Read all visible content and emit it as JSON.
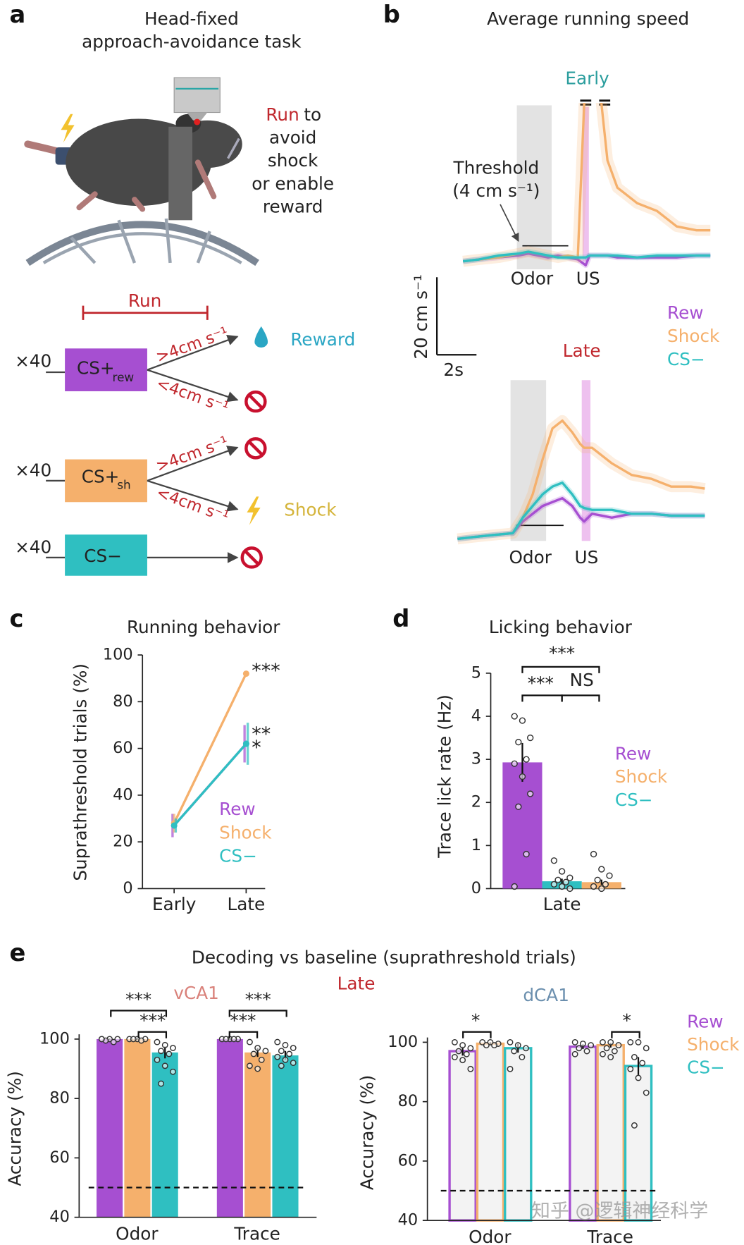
{
  "panel_labels": [
    "a",
    "b",
    "c",
    "d",
    "e"
  ],
  "panel_a": {
    "title": [
      "Head-fixed",
      "approach-avoidance task"
    ],
    "note_highlight": "Run",
    "note": [
      "to",
      "avoid",
      "shock",
      "or enable",
      "reward"
    ],
    "run_label": "Run",
    "rows": [
      {
        "count": "×40",
        "cue": "CS+",
        "cue_sub": "rew",
        "fast": ">4cm s⁻¹",
        "slow": "<4cm s⁻¹",
        "outcome": "Reward"
      },
      {
        "count": "×40",
        "cue": "CS+",
        "cue_sub": "sh",
        "fast": ">4cm s⁻¹",
        "slow": "<4cm s⁻¹",
        "outcome": "Shock"
      },
      {
        "count": "×40",
        "cue": "CS−"
      }
    ]
  },
  "watermark": "知乎 @逻辑神经科学",
  "chart_data": [
    {
      "type": "line",
      "title": "Average running speed",
      "legend": [
        {
          "name": "Rew",
          "color": "#a64fd1"
        },
        {
          "name": "Shock",
          "color": "#f5b06c"
        },
        {
          "name": "CS−",
          "color": "#2fbfc1"
        }
      ],
      "threshold": {
        "value": 4,
        "label": [
          "Threshold",
          "(4 cm s⁻¹)"
        ]
      },
      "scale_bar": {
        "y": {
          "value": 20,
          "label": "20 cm s⁻¹"
        },
        "x": {
          "value": 2,
          "label": "2s"
        }
      },
      "x": [
        -2.8,
        -2,
        -1,
        0,
        0.5,
        1,
        1.5,
        2,
        2.5,
        3,
        3.4,
        3.6,
        4,
        4.5,
        5,
        6,
        7,
        8,
        9,
        9.7
      ],
      "panels": [
        {
          "label": "Early",
          "events": [
            "Odor",
            "US"
          ],
          "series": [
            {
              "values": [
                0,
                0.5,
                1,
                1.5,
                2,
                1.5,
                1,
                1.5,
                1,
                0.5,
                -1,
                1.5,
                1.5,
                1.5,
                1,
                1,
                1,
                1,
                1.5,
                1.5
              ]
            },
            {
              "values": [
                0,
                0.5,
                1,
                2,
                2.5,
                2,
                1.5,
                1,
                1.5,
                1,
                50,
                50,
                50,
                26,
                19,
                15,
                13,
                9,
                8,
                8
              ]
            },
            {
              "values": [
                0,
                0.5,
                1.5,
                2,
                2.5,
                2,
                1.5,
                1,
                1,
                1,
                1,
                1.5,
                1.5,
                1.5,
                1.5,
                1,
                1.5,
                1.5,
                1.5,
                1.5
              ]
            }
          ]
        },
        {
          "label": "Late",
          "events": [
            "Odor",
            "US"
          ],
          "series": [
            {
              "values": [
                0.5,
                1,
                1.5,
                2,
                5,
                7,
                9,
                10,
                11,
                9,
                6,
                5,
                7,
                6.5,
                6,
                7,
                7,
                6.5,
                6.5,
                6.5
              ]
            },
            {
              "values": [
                0.5,
                1,
                1.5,
                2,
                6,
                12,
                21,
                29,
                31,
                28,
                25,
                24,
                24,
                22,
                20,
                17,
                16,
                14,
                14,
                13.5
              ]
            },
            {
              "values": [
                0.5,
                1,
                1.5,
                2,
                6,
                9,
                12,
                14,
                15,
                12,
                9,
                8.5,
                8,
                8,
                8,
                7,
                7,
                6.5,
                6.5,
                6.5
              ]
            }
          ]
        }
      ]
    },
    {
      "type": "line",
      "title": "Running behavior",
      "y_label": "Suprathreshold trials (%)",
      "categories": [
        "Early",
        "Late"
      ],
      "series": [
        {
          "name": "Rew",
          "color": "#a64fd1",
          "values": [
            27,
            62
          ],
          "errors": [
            5,
            8
          ]
        },
        {
          "name": "Shock",
          "color": "#f5b06c",
          "values": [
            28,
            92
          ],
          "errors": [
            4,
            1
          ]
        },
        {
          "name": "CS−",
          "color": "#2fbfc1",
          "values": [
            27,
            62
          ],
          "errors": [
            3,
            9
          ]
        }
      ],
      "annotations": [
        "***",
        "**",
        "*"
      ],
      "ylim": [
        0,
        100
      ],
      "yticks": [
        0,
        20,
        40,
        60,
        80,
        100
      ]
    },
    {
      "type": "bar",
      "title": "Licking behavior",
      "y_label": "Trace lick rate (Hz)",
      "categories": [
        "Late"
      ],
      "series": [
        {
          "name": "Rew",
          "color": "#a64fd1",
          "values": [
            2.93
          ],
          "errors": [
            0.45
          ],
          "points": [
            [
              4.0,
              3.9,
              3.5,
              3.4,
              3.0,
              2.9,
              2.6,
              2.2,
              1.9,
              0.8,
              0.05
            ]
          ]
        },
        {
          "name": "CS−",
          "color": "#2fbfc1",
          "values": [
            0.17
          ],
          "errors": [
            0.06
          ],
          "points": [
            [
              0.65,
              0.4,
              0.25,
              0.2,
              0.15,
              0.1,
              0.05,
              0
            ]
          ]
        },
        {
          "name": "Shock",
          "color": "#f5b06c",
          "values": [
            0.15
          ],
          "errors": [
            0.06
          ],
          "points": [
            [
              0.8,
              0.45,
              0.3,
              0.2,
              0.1,
              0.05,
              0
            ]
          ]
        }
      ],
      "annotations": [
        "***",
        "NS",
        "***"
      ],
      "ylim": [
        0,
        5
      ],
      "yticks": [
        0,
        1,
        2,
        3,
        4,
        5
      ]
    },
    {
      "type": "bar",
      "title": "Decoding vs baseline (suprathreshold trials)",
      "subtitle": "Late",
      "legend": [
        {
          "name": "Rew",
          "color": "#a64fd1"
        },
        {
          "name": "Shock",
          "color": "#f5b06c"
        },
        {
          "name": "CS−",
          "color": "#2fbfc1"
        }
      ],
      "panels": [
        {
          "label": "vCA1",
          "label_color": "#d9817a",
          "bar_style": "filled",
          "y_label": "Accuracy (%)",
          "categories": [
            "Odor",
            "Trace"
          ],
          "ylim": [
            40,
            100
          ],
          "yticks": [
            40,
            60,
            80,
            100
          ],
          "chance": 50,
          "series": [
            {
              "color": "#a64fd1",
              "values": [
                100,
                100
              ],
              "errors": [
                0.2,
                0.2
              ],
              "points": [
                [
                  100,
                  100,
                  100,
                  99.5,
                  99,
                  100
                ],
                [
                  100,
                  100,
                  100,
                  100,
                  100
                ]
              ]
            },
            {
              "color": "#f5b06c",
              "values": [
                100,
                95.5
              ],
              "errors": [
                0.2,
                1.5
              ],
              "points": [
                [
                  100,
                  100,
                  100,
                  100,
                  99.5
                ],
                [
                  99,
                  97,
                  96,
                  95,
                  93,
                  91,
                  90
                ]
              ]
            },
            {
              "color": "#2fbfc1",
              "values": [
                95.5,
                94.5
              ],
              "errors": [
                2,
                1.5
              ],
              "points": [
                [
                  99,
                  98,
                  97,
                  96,
                  95,
                  93,
                  91,
                  89,
                  85
                ],
                [
                  99,
                  98,
                  97,
                  96,
                  95,
                  94,
                  93,
                  92,
                  91
                ]
              ]
            }
          ],
          "annotations": [
            "***",
            "***",
            "***",
            "***"
          ]
        },
        {
          "label": "dCA1",
          "label_color": "#6b8fae",
          "bar_style": "outline",
          "y_label": "Accuracy (%)",
          "categories": [
            "Odor",
            "Trace"
          ],
          "ylim": [
            40,
            100
          ],
          "yticks": [
            40,
            60,
            80,
            100
          ],
          "chance": 50,
          "series": [
            {
              "color": "#a64fd1",
              "values": [
                97,
                98.5
              ],
              "errors": [
                1.5,
                0.8
              ],
              "points": [
                [
                  100,
                  99,
                  98,
                  97,
                  96,
                  95,
                  94,
                  91
                ],
                [
                  100,
                  99.5,
                  99,
                  98,
                  97,
                  96
                ]
              ]
            },
            {
              "color": "#f5b06c",
              "values": [
                99.5,
                99
              ],
              "errors": [
                0.5,
                0.8
              ],
              "points": [
                [
                  100,
                  100,
                  99.5,
                  99,
                  99
                ],
                [
                  100,
                  100,
                  99,
                  98,
                  97,
                  96,
                  95
                ]
              ]
            },
            {
              "color": "#2fbfc1",
              "values": [
                98,
                92
              ],
              "errors": [
                1.5,
                3
              ],
              "points": [
                [
                  100,
                  99,
                  98,
                  97,
                  95,
                  91
                ],
                [
                  100,
                  100,
                  98,
                  95,
                  93,
                  91,
                  88,
                  83,
                  72
                ]
              ]
            }
          ],
          "annotations": [
            "*",
            "*"
          ]
        }
      ]
    }
  ]
}
